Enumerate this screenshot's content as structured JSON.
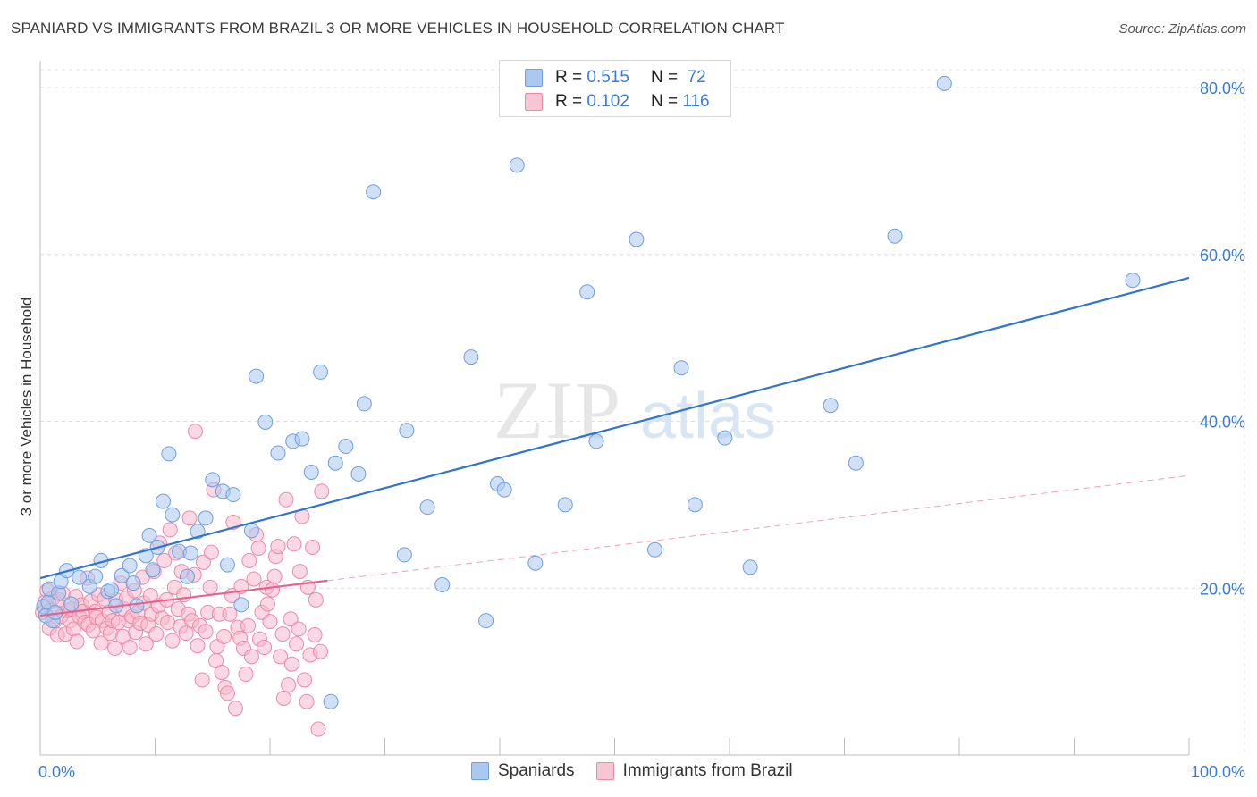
{
  "header": {
    "title": "SPANIARD VS IMMIGRANTS FROM BRAZIL 3 OR MORE VEHICLES IN HOUSEHOLD CORRELATION CHART",
    "source": "Source: ZipAtlas.com"
  },
  "watermark": {
    "zip": "ZIP",
    "atlas": "atlas"
  },
  "legend": {
    "rows": [
      {
        "r_label": "R =",
        "r_value": "0.515",
        "n_label": "N =",
        "n_value": "72"
      },
      {
        "r_label": "R =",
        "r_value": "0.102",
        "n_label": "N =",
        "n_value": "116"
      }
    ]
  },
  "bottom_legend": {
    "series1": "Spaniards",
    "series2": "Immigrants from Brazil"
  },
  "colors": {
    "blue_fill": "#aac8f0",
    "blue_stroke": "#6f9fdc",
    "blue_line": "#2f74d0",
    "pink_fill": "#f7b8cc",
    "pink_stroke": "#ea8aa8",
    "pink_line": "#e8628c",
    "axis_text": "#3a7bd5"
  },
  "chart_data": {
    "type": "scatter",
    "title": "SPANIARD VS IMMIGRANTS FROM BRAZIL 3 OR MORE VEHICLES IN HOUSEHOLD CORRELATION CHART",
    "xlabel": "",
    "ylabel": "3 or more Vehicles in Household",
    "xlim": [
      0,
      100
    ],
    "ylim": [
      0,
      80
    ],
    "x_tick_labels": [
      "0.0%",
      "100.0%"
    ],
    "y_ticks": [
      20,
      40,
      60,
      80
    ],
    "y_tick_labels": [
      "20.0%",
      "40.0%",
      "60.0%",
      "80.0%"
    ],
    "grid": true,
    "series": [
      {
        "name": "Spaniards",
        "R": 0.515,
        "N": 72,
        "trend": {
          "x": [
            0,
            100
          ],
          "y": [
            21.2,
            57.2
          ],
          "style": "solid"
        },
        "points": [
          [
            0.3,
            17.8
          ],
          [
            0.5,
            16.7
          ],
          [
            0.7,
            18.3
          ],
          [
            0.8,
            19.9
          ],
          [
            1.1,
            16.1
          ],
          [
            1.3,
            17.1
          ],
          [
            1.6,
            19.4
          ],
          [
            1.8,
            20.8
          ],
          [
            2.3,
            22.1
          ],
          [
            2.7,
            18.1
          ],
          [
            3.4,
            21.3
          ],
          [
            4.3,
            20.2
          ],
          [
            4.8,
            21.4
          ],
          [
            5.3,
            23.3
          ],
          [
            5.9,
            19.6
          ],
          [
            6.2,
            19.8
          ],
          [
            6.6,
            17.9
          ],
          [
            7.1,
            21.5
          ],
          [
            7.8,
            22.7
          ],
          [
            8.1,
            20.6
          ],
          [
            8.4,
            17.9
          ],
          [
            9.2,
            23.9
          ],
          [
            9.5,
            26.3
          ],
          [
            9.8,
            22.2
          ],
          [
            10.2,
            24.9
          ],
          [
            10.7,
            30.4
          ],
          [
            11.2,
            36.1
          ],
          [
            11.5,
            28.8
          ],
          [
            12.1,
            24.4
          ],
          [
            12.8,
            21.4
          ],
          [
            13.1,
            24.2
          ],
          [
            13.7,
            26.8
          ],
          [
            14.4,
            28.4
          ],
          [
            15.0,
            33.0
          ],
          [
            15.9,
            31.6
          ],
          [
            16.3,
            22.8
          ],
          [
            16.8,
            31.2
          ],
          [
            17.5,
            18.0
          ],
          [
            18.4,
            26.9
          ],
          [
            18.8,
            45.4
          ],
          [
            19.6,
            39.9
          ],
          [
            20.7,
            36.2
          ],
          [
            22.0,
            37.6
          ],
          [
            22.8,
            37.9
          ],
          [
            23.6,
            33.9
          ],
          [
            24.4,
            45.9
          ],
          [
            25.3,
            6.4
          ],
          [
            25.7,
            35.0
          ],
          [
            26.6,
            37.0
          ],
          [
            27.7,
            33.7
          ],
          [
            28.2,
            42.1
          ],
          [
            29.0,
            67.5
          ],
          [
            31.7,
            24.0
          ],
          [
            31.9,
            38.9
          ],
          [
            33.7,
            29.7
          ],
          [
            35.0,
            20.4
          ],
          [
            37.5,
            47.7
          ],
          [
            38.8,
            16.1
          ],
          [
            39.8,
            32.5
          ],
          [
            40.4,
            31.8
          ],
          [
            41.5,
            70.7
          ],
          [
            43.1,
            23.0
          ],
          [
            45.7,
            30.0
          ],
          [
            47.6,
            55.5
          ],
          [
            48.4,
            37.6
          ],
          [
            51.9,
            61.8
          ],
          [
            53.5,
            24.6
          ],
          [
            55.8,
            46.4
          ],
          [
            57.0,
            30.0
          ],
          [
            59.6,
            38.0
          ],
          [
            61.8,
            22.5
          ],
          [
            68.8,
            41.9
          ],
          [
            71.0,
            35.0
          ],
          [
            74.4,
            62.2
          ],
          [
            78.7,
            80.5
          ],
          [
            95.1,
            56.9
          ]
        ]
      },
      {
        "name": "Immigrants from Brazil",
        "R": 0.102,
        "N": 116,
        "trend": {
          "x": [
            0,
            100
          ],
          "y": [
            16.7,
            33.5
          ],
          "solid_until_x": 25,
          "style": "solid-then-dashed"
        },
        "points": [
          [
            0.2,
            17.1
          ],
          [
            0.4,
            18.3
          ],
          [
            0.6,
            19.7
          ],
          [
            0.8,
            15.2
          ],
          [
            1.0,
            17.4
          ],
          [
            1.1,
            18.8
          ],
          [
            1.3,
            16.1
          ],
          [
            1.5,
            14.4
          ],
          [
            1.6,
            18.6
          ],
          [
            1.8,
            16.6
          ],
          [
            2.0,
            19.3
          ],
          [
            2.2,
            14.5
          ],
          [
            2.4,
            17.3
          ],
          [
            2.6,
            16.1
          ],
          [
            2.7,
            17.5
          ],
          [
            2.9,
            15.1
          ],
          [
            3.1,
            19.0
          ],
          [
            3.2,
            13.6
          ],
          [
            3.4,
            16.6
          ],
          [
            3.6,
            18.0
          ],
          [
            3.7,
            17.2
          ],
          [
            3.9,
            15.9
          ],
          [
            4.1,
            21.2
          ],
          [
            4.2,
            15.6
          ],
          [
            4.4,
            18.4
          ],
          [
            4.6,
            14.9
          ],
          [
            4.8,
            17.2
          ],
          [
            4.9,
            16.5
          ],
          [
            5.1,
            19.2
          ],
          [
            5.3,
            13.4
          ],
          [
            5.4,
            16.1
          ],
          [
            5.6,
            18.7
          ],
          [
            5.8,
            15.2
          ],
          [
            6.0,
            17.1
          ],
          [
            6.1,
            14.6
          ],
          [
            6.3,
            16.1
          ],
          [
            6.5,
            12.8
          ],
          [
            6.6,
            18.6
          ],
          [
            6.8,
            15.9
          ],
          [
            7.0,
            20.6
          ],
          [
            7.2,
            14.2
          ],
          [
            7.3,
            17.5
          ],
          [
            7.5,
            18.8
          ],
          [
            7.7,
            16.1
          ],
          [
            7.8,
            12.9
          ],
          [
            8.0,
            16.6
          ],
          [
            8.2,
            19.7
          ],
          [
            8.3,
            14.7
          ],
          [
            8.5,
            17.1
          ],
          [
            8.7,
            15.8
          ],
          [
            8.9,
            21.3
          ],
          [
            9.0,
            18.2
          ],
          [
            9.2,
            13.3
          ],
          [
            9.4,
            15.6
          ],
          [
            9.6,
            19.1
          ],
          [
            9.7,
            16.9
          ],
          [
            9.9,
            22.0
          ],
          [
            10.1,
            14.5
          ],
          [
            10.3,
            17.9
          ],
          [
            10.4,
            25.4
          ],
          [
            10.6,
            16.4
          ],
          [
            10.8,
            23.3
          ],
          [
            11.0,
            18.6
          ],
          [
            11.1,
            15.9
          ],
          [
            11.3,
            27.0
          ],
          [
            11.5,
            13.7
          ],
          [
            11.7,
            20.1
          ],
          [
            11.8,
            24.2
          ],
          [
            12.0,
            17.5
          ],
          [
            12.2,
            15.4
          ],
          [
            12.3,
            22.0
          ],
          [
            12.5,
            19.2
          ],
          [
            12.7,
            14.6
          ],
          [
            12.9,
            16.9
          ],
          [
            13.0,
            28.4
          ],
          [
            13.2,
            16.1
          ],
          [
            13.4,
            21.6
          ],
          [
            13.5,
            38.8
          ],
          [
            13.7,
            13.1
          ],
          [
            13.9,
            15.5
          ],
          [
            14.1,
            9.0
          ],
          [
            14.2,
            23.1
          ],
          [
            14.4,
            14.8
          ],
          [
            14.6,
            17.1
          ],
          [
            14.8,
            20.1
          ],
          [
            14.9,
            24.3
          ],
          [
            15.1,
            31.8
          ],
          [
            15.3,
            11.3
          ],
          [
            15.4,
            13.0
          ],
          [
            15.6,
            16.9
          ],
          [
            15.8,
            9.9
          ],
          [
            16.0,
            14.2
          ],
          [
            16.1,
            8.1
          ],
          [
            16.3,
            7.4
          ],
          [
            16.5,
            16.9
          ],
          [
            16.7,
            19.1
          ],
          [
            16.8,
            27.9
          ],
          [
            17.0,
            5.6
          ],
          [
            17.2,
            15.3
          ],
          [
            17.4,
            14.0
          ],
          [
            17.5,
            20.2
          ],
          [
            17.7,
            12.8
          ],
          [
            17.9,
            9.7
          ],
          [
            18.1,
            15.5
          ],
          [
            18.2,
            23.3
          ],
          [
            18.4,
            11.8
          ],
          [
            18.6,
            21.1
          ],
          [
            18.8,
            26.4
          ],
          [
            19.0,
            24.8
          ],
          [
            19.1,
            13.9
          ],
          [
            19.3,
            17.1
          ],
          [
            19.5,
            12.9
          ],
          [
            19.7,
            20.1
          ],
          [
            19.8,
            18.1
          ],
          [
            20.0,
            16.0
          ],
          [
            20.2,
            19.8
          ],
          [
            20.4,
            21.4
          ],
          [
            20.5,
            23.8
          ],
          [
            20.7,
            25.0
          ],
          [
            20.9,
            11.8
          ],
          [
            21.1,
            14.5
          ],
          [
            21.2,
            6.8
          ],
          [
            21.4,
            30.6
          ],
          [
            21.6,
            8.4
          ],
          [
            21.8,
            16.3
          ],
          [
            21.9,
            10.9
          ],
          [
            22.1,
            25.3
          ],
          [
            22.3,
            13.3
          ],
          [
            22.5,
            15.1
          ],
          [
            22.6,
            22.0
          ],
          [
            22.8,
            28.6
          ],
          [
            23.0,
            9.0
          ],
          [
            23.2,
            6.4
          ],
          [
            23.3,
            20.1
          ],
          [
            23.5,
            12.0
          ],
          [
            23.7,
            24.9
          ],
          [
            23.9,
            14.4
          ],
          [
            24.0,
            18.6
          ],
          [
            24.2,
            3.1
          ],
          [
            24.4,
            12.4
          ],
          [
            24.5,
            31.6
          ]
        ]
      }
    ]
  }
}
